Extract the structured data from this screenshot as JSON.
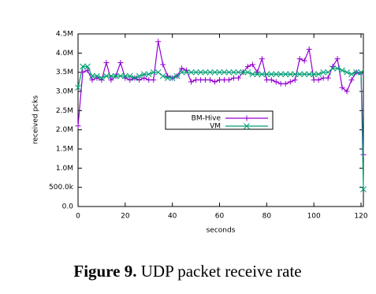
{
  "chart_data": {
    "type": "line",
    "x_label": "seconds",
    "y_label": "received pcks",
    "x": [
      0,
      2,
      4,
      6,
      8,
      10,
      12,
      14,
      16,
      18,
      20,
      22,
      24,
      26,
      28,
      30,
      32,
      34,
      36,
      38,
      40,
      42,
      44,
      46,
      48,
      50,
      52,
      54,
      56,
      58,
      60,
      62,
      64,
      66,
      68,
      70,
      72,
      74,
      76,
      78,
      80,
      82,
      84,
      86,
      88,
      90,
      92,
      94,
      96,
      98,
      100,
      102,
      104,
      106,
      108,
      110,
      112,
      114,
      116,
      118,
      120,
      121
    ],
    "series": [
      {
        "name": "BM-Hive",
        "color": "#9400d3",
        "marker": "plus",
        "values": [
          2100000,
          3500000,
          3550000,
          3300000,
          3350000,
          3300000,
          3750000,
          3300000,
          3400000,
          3750000,
          3350000,
          3300000,
          3350000,
          3300000,
          3350000,
          3300000,
          3300000,
          4300000,
          3700000,
          3400000,
          3350000,
          3400000,
          3600000,
          3550000,
          3250000,
          3300000,
          3300000,
          3300000,
          3300000,
          3250000,
          3300000,
          3300000,
          3300000,
          3350000,
          3350000,
          3500000,
          3650000,
          3700000,
          3500000,
          3850000,
          3300000,
          3300000,
          3250000,
          3200000,
          3200000,
          3250000,
          3300000,
          3850000,
          3800000,
          4100000,
          3300000,
          3300000,
          3350000,
          3350000,
          3650000,
          3850000,
          3100000,
          3000000,
          3300000,
          3500000,
          3450000,
          1350000
        ]
      },
      {
        "name": "VM",
        "color": "#009e73",
        "marker": "cross",
        "values": [
          3100000,
          3650000,
          3650000,
          3400000,
          3400000,
          3350000,
          3400000,
          3400000,
          3400000,
          3400000,
          3400000,
          3400000,
          3350000,
          3400000,
          3450000,
          3450000,
          3500000,
          3500000,
          3400000,
          3350000,
          3350000,
          3400000,
          3500000,
          3500000,
          3500000,
          3500000,
          3500000,
          3500000,
          3500000,
          3500000,
          3500000,
          3500000,
          3500000,
          3500000,
          3500000,
          3500000,
          3500000,
          3450000,
          3450000,
          3450000,
          3450000,
          3450000,
          3450000,
          3450000,
          3450000,
          3450000,
          3450000,
          3450000,
          3450000,
          3450000,
          3450000,
          3450000,
          3500000,
          3500000,
          3600000,
          3600000,
          3550000,
          3500000,
          3450000,
          3500000,
          3500000,
          450000
        ]
      }
    ],
    "xlim": [
      0,
      121
    ],
    "xticks": [
      0,
      20,
      40,
      60,
      80,
      100,
      120
    ],
    "ylim": [
      0,
      4500000
    ],
    "yticks": [
      {
        "value": 0,
        "label": "0.0"
      },
      {
        "value": 500000,
        "label": "500.0k"
      },
      {
        "value": 1000000,
        "label": "1.0M"
      },
      {
        "value": 1500000,
        "label": "1.5M"
      },
      {
        "value": 2000000,
        "label": "2.0M"
      },
      {
        "value": 2500000,
        "label": "2.5M"
      },
      {
        "value": 3000000,
        "label": "3.0M"
      },
      {
        "value": 3500000,
        "label": "3.5M"
      },
      {
        "value": 4000000,
        "label": "4.0M"
      },
      {
        "value": 4500000,
        "label": "4.5M"
      }
    ],
    "legend": "center"
  },
  "caption": {
    "label": "Figure 9.",
    "text": "UDP packet receive rate"
  }
}
